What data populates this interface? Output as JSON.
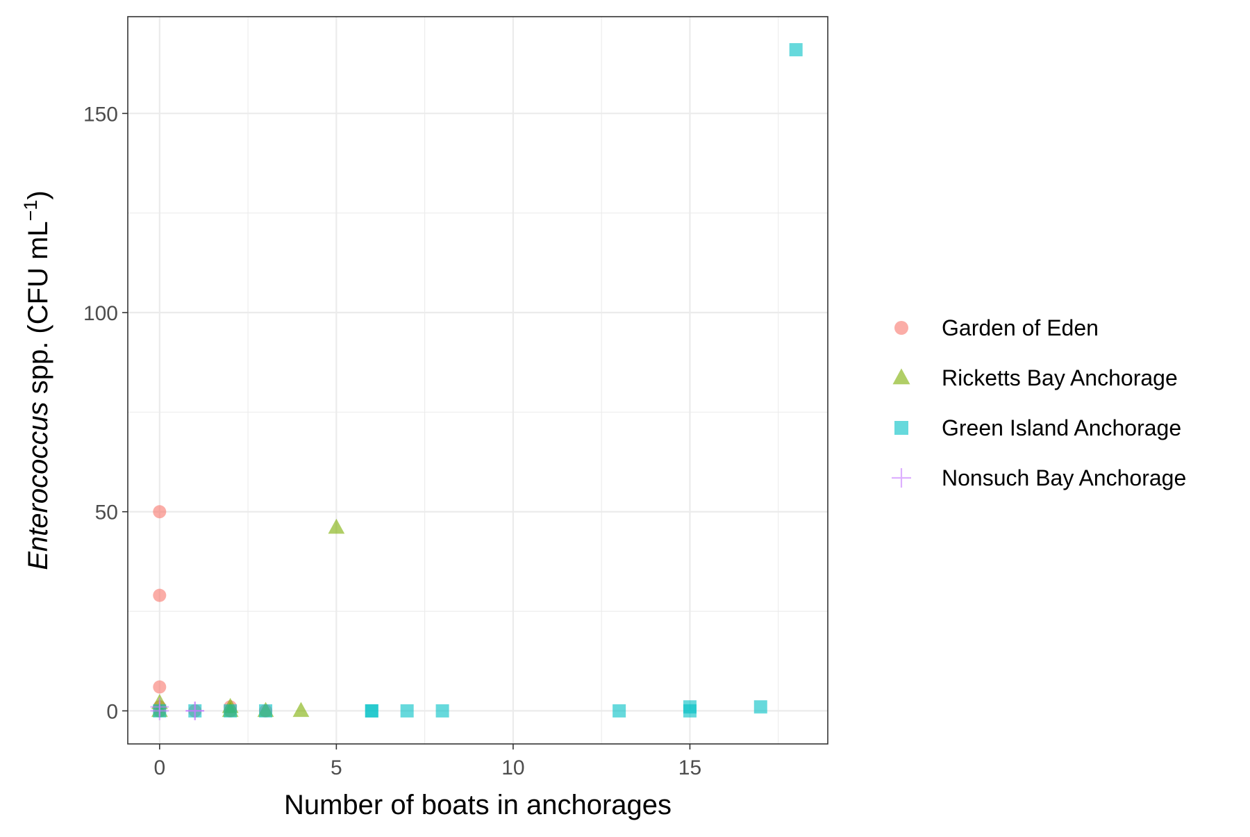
{
  "chart_data": {
    "type": "scatter",
    "xlabel": "Number of boats in anchorages",
    "ylabel_italic": "Enterococcus",
    "ylabel_rest": " spp. (CFU mL",
    "ylabel_sup": "−1",
    "ylabel_close": ")",
    "xlim": [
      -0.9,
      18.9
    ],
    "ylim": [
      -8.3,
      174.3
    ],
    "x_ticks": [
      0,
      5,
      10,
      15
    ],
    "y_ticks": [
      0,
      50,
      100,
      150
    ],
    "grid": true,
    "legend_position": "right",
    "series": [
      {
        "name": "Garden of Eden",
        "marker": "circle",
        "color": "#F8766D",
        "points": [
          [
            0,
            50
          ],
          [
            0,
            29
          ],
          [
            0,
            6
          ],
          [
            0,
            1
          ],
          [
            0,
            0
          ],
          [
            1,
            0
          ],
          [
            2,
            1
          ],
          [
            2,
            0
          ],
          [
            3,
            0
          ]
        ]
      },
      {
        "name": "Ricketts Bay Anchorage",
        "marker": "triangle",
        "color": "#7CAE00",
        "points": [
          [
            0,
            2
          ],
          [
            0,
            0
          ],
          [
            2,
            0
          ],
          [
            2,
            1
          ],
          [
            3,
            0
          ],
          [
            4,
            0
          ],
          [
            5,
            46
          ]
        ]
      },
      {
        "name": "Green Island Anchorage",
        "marker": "square",
        "color": "#00BFC4",
        "points": [
          [
            0,
            0
          ],
          [
            1,
            0
          ],
          [
            2,
            0
          ],
          [
            3,
            0
          ],
          [
            6,
            0
          ],
          [
            6,
            0
          ],
          [
            7,
            0
          ],
          [
            8,
            0
          ],
          [
            13,
            0
          ],
          [
            15,
            0
          ],
          [
            15,
            1
          ],
          [
            17,
            1
          ],
          [
            18,
            166
          ]
        ]
      },
      {
        "name": "Nonsuch Bay Anchorage",
        "marker": "plus",
        "color": "#C77CFF",
        "points": [
          [
            0,
            0
          ],
          [
            0,
            1
          ],
          [
            1,
            0
          ],
          [
            1,
            0
          ]
        ]
      }
    ]
  }
}
